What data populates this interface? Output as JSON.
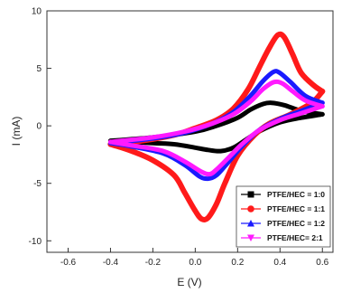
{
  "chart_data": {
    "type": "line",
    "title": "",
    "xlabel": "E (V)",
    "ylabel": "I (mA)",
    "xlim": [
      -0.7,
      0.65
    ],
    "ylim": [
      -11,
      10
    ],
    "x_ticks": [
      -0.6,
      -0.4,
      -0.2,
      0.0,
      0.2,
      0.4,
      0.6
    ],
    "x_tick_labels": [
      "-0.6",
      "-0.4",
      "-0.2",
      "0.0",
      "0.2",
      "0.4",
      "0.6"
    ],
    "y_ticks": [
      -10,
      -5,
      0,
      5,
      10
    ],
    "y_tick_labels": [
      "-10",
      "-5",
      "0",
      "5",
      "10"
    ],
    "legend_position": "bottom-right",
    "series": [
      {
        "name": "PTFE/HEC = 1:0",
        "color": "#000000",
        "marker": "square",
        "anodic": [
          [
            -0.4,
            -1.3
          ],
          [
            -0.2,
            -1.0
          ],
          [
            0.0,
            -0.5
          ],
          [
            0.1,
            0.0
          ],
          [
            0.2,
            0.7
          ],
          [
            0.26,
            1.4
          ],
          [
            0.32,
            1.9
          ],
          [
            0.36,
            2.0
          ],
          [
            0.42,
            1.8
          ],
          [
            0.5,
            1.3
          ],
          [
            0.6,
            1.0
          ]
        ],
        "cathodic": [
          [
            0.6,
            1.0
          ],
          [
            0.5,
            0.7
          ],
          [
            0.4,
            0.3
          ],
          [
            0.3,
            -0.5
          ],
          [
            0.24,
            -1.2
          ],
          [
            0.18,
            -1.9
          ],
          [
            0.12,
            -2.2
          ],
          [
            0.06,
            -2.1
          ],
          [
            0.0,
            -1.9
          ],
          [
            -0.1,
            -1.6
          ],
          [
            -0.2,
            -1.5
          ],
          [
            -0.4,
            -1.3
          ]
        ]
      },
      {
        "name": "PTFE/HEC = 1:1",
        "color": "#ff1a1a",
        "marker": "circle",
        "anodic": [
          [
            -0.4,
            -1.6
          ],
          [
            -0.25,
            -1.3
          ],
          [
            -0.1,
            -0.8
          ],
          [
            0.0,
            -0.2
          ],
          [
            0.1,
            0.5
          ],
          [
            0.18,
            1.5
          ],
          [
            0.25,
            3.2
          ],
          [
            0.3,
            5.0
          ],
          [
            0.35,
            6.8
          ],
          [
            0.39,
            7.9
          ],
          [
            0.42,
            7.7
          ],
          [
            0.46,
            6.2
          ],
          [
            0.5,
            4.6
          ],
          [
            0.56,
            3.5
          ],
          [
            0.6,
            3.0
          ]
        ],
        "cathodic": [
          [
            0.6,
            3.0
          ],
          [
            0.55,
            2.0
          ],
          [
            0.45,
            1.0
          ],
          [
            0.35,
            0.2
          ],
          [
            0.28,
            -0.8
          ],
          [
            0.2,
            -2.6
          ],
          [
            0.14,
            -5.0
          ],
          [
            0.1,
            -6.8
          ],
          [
            0.06,
            -8.0
          ],
          [
            0.03,
            -8.1
          ],
          [
            0.0,
            -7.4
          ],
          [
            -0.05,
            -5.8
          ],
          [
            -0.1,
            -4.3
          ],
          [
            -0.2,
            -3.0
          ],
          [
            -0.3,
            -2.2
          ],
          [
            -0.4,
            -1.6
          ]
        ]
      },
      {
        "name": "PTFE/HEC = 1:2",
        "color": "#1a1aff",
        "marker": "triangle",
        "anodic": [
          [
            -0.4,
            -1.5
          ],
          [
            -0.2,
            -1.1
          ],
          [
            -0.05,
            -0.6
          ],
          [
            0.08,
            0.2
          ],
          [
            0.18,
            1.2
          ],
          [
            0.26,
            2.6
          ],
          [
            0.32,
            3.9
          ],
          [
            0.37,
            4.7
          ],
          [
            0.4,
            4.6
          ],
          [
            0.45,
            3.8
          ],
          [
            0.52,
            2.6
          ],
          [
            0.6,
            2.0
          ]
        ],
        "cathodic": [
          [
            0.6,
            2.0
          ],
          [
            0.5,
            1.3
          ],
          [
            0.4,
            0.6
          ],
          [
            0.3,
            -0.4
          ],
          [
            0.22,
            -1.8
          ],
          [
            0.15,
            -3.3
          ],
          [
            0.1,
            -4.3
          ],
          [
            0.06,
            -4.6
          ],
          [
            0.02,
            -4.4
          ],
          [
            -0.05,
            -3.4
          ],
          [
            -0.15,
            -2.4
          ],
          [
            -0.3,
            -1.8
          ],
          [
            -0.4,
            -1.5
          ]
        ]
      },
      {
        "name": "PTFE/HEC= 2:1",
        "color": "#ff1aff",
        "marker": "triangle-down",
        "anodic": [
          [
            -0.4,
            -1.4
          ],
          [
            -0.2,
            -1.0
          ],
          [
            -0.05,
            -0.5
          ],
          [
            0.08,
            0.2
          ],
          [
            0.18,
            1.0
          ],
          [
            0.26,
            2.1
          ],
          [
            0.32,
            3.2
          ],
          [
            0.37,
            3.8
          ],
          [
            0.41,
            3.7
          ],
          [
            0.46,
            3.0
          ],
          [
            0.52,
            2.2
          ],
          [
            0.6,
            1.7
          ]
        ],
        "cathodic": [
          [
            0.6,
            1.7
          ],
          [
            0.5,
            1.1
          ],
          [
            0.4,
            0.5
          ],
          [
            0.3,
            -0.4
          ],
          [
            0.22,
            -1.6
          ],
          [
            0.15,
            -2.9
          ],
          [
            0.1,
            -3.8
          ],
          [
            0.07,
            -4.2
          ],
          [
            0.03,
            -4.0
          ],
          [
            -0.05,
            -3.1
          ],
          [
            -0.15,
            -2.2
          ],
          [
            -0.3,
            -1.7
          ],
          [
            -0.4,
            -1.4
          ]
        ]
      }
    ]
  }
}
